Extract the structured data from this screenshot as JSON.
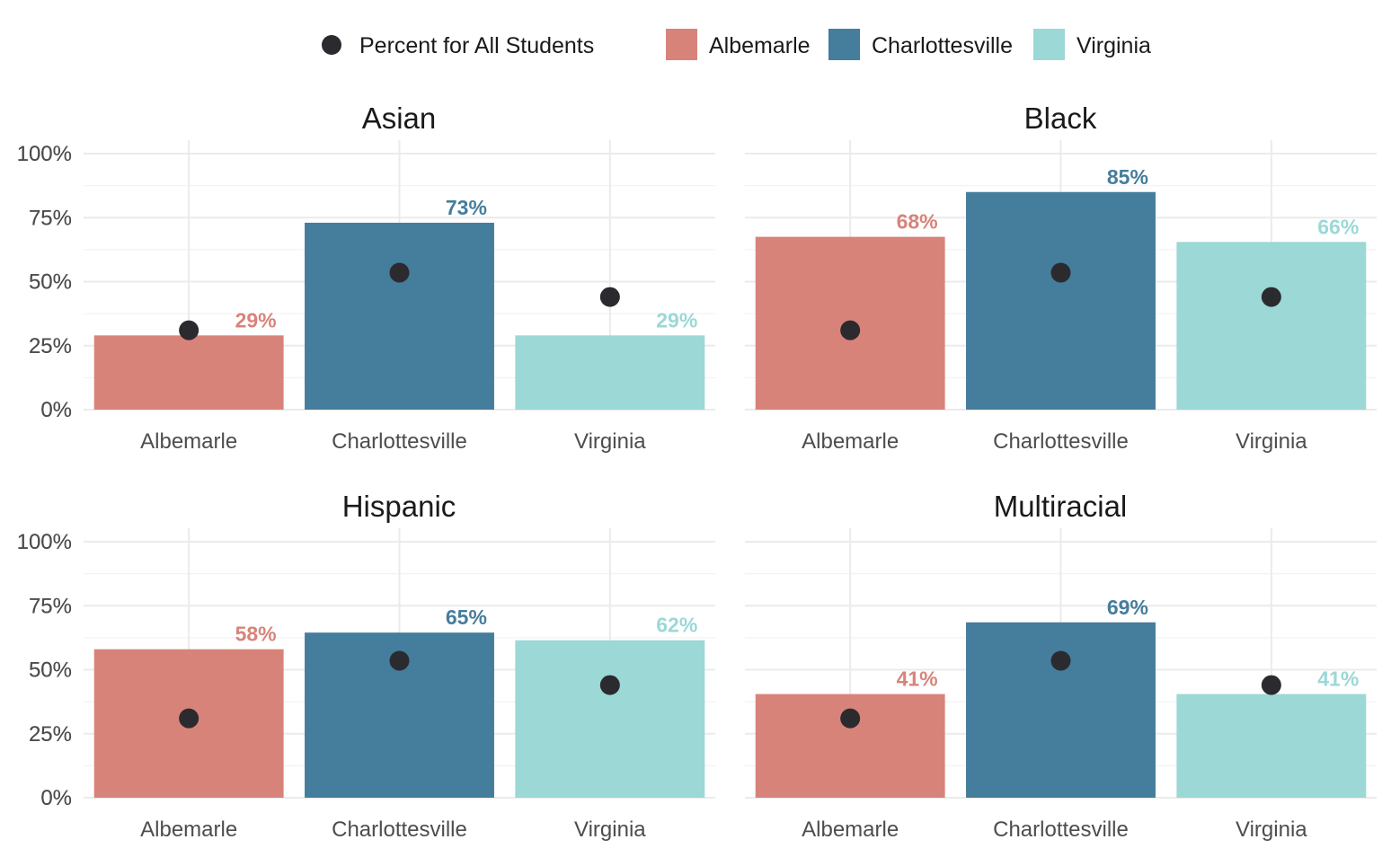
{
  "chart_data": {
    "type": "bar",
    "categories": [
      "Albemarle",
      "Charlottesville",
      "Virginia"
    ],
    "colors": {
      "Albemarle": "#d8837a",
      "Charlottesville": "#457d9c",
      "Virginia": "#9bd8d6",
      "point": "#2b2b2f"
    },
    "legend": {
      "placement": "top",
      "point_label": "Percent for All Students",
      "bar_labels": [
        "Albemarle",
        "Charlottesville",
        "Virginia"
      ]
    },
    "ylim": [
      0,
      100
    ],
    "y_ticks": [
      0,
      25,
      50,
      75,
      100
    ],
    "y_tick_labels": [
      "0%",
      "25%",
      "50%",
      "75%",
      "100%"
    ],
    "grid": true,
    "all_students": [
      31,
      53.5,
      44
    ],
    "facets": [
      {
        "title": "Asian",
        "values": [
          29,
          73,
          29
        ],
        "labels": [
          "29%",
          "73%",
          "29%"
        ]
      },
      {
        "title": "Black",
        "values": [
          67.5,
          85,
          65.5
        ],
        "labels": [
          "68%",
          "85%",
          "66%"
        ]
      },
      {
        "title": "Hispanic",
        "values": [
          58,
          64.5,
          61.5
        ],
        "labels": [
          "58%",
          "65%",
          "62%"
        ]
      },
      {
        "title": "Multiracial",
        "values": [
          40.5,
          68.5,
          40.5
        ],
        "labels": [
          "41%",
          "69%",
          "41%"
        ]
      }
    ]
  }
}
